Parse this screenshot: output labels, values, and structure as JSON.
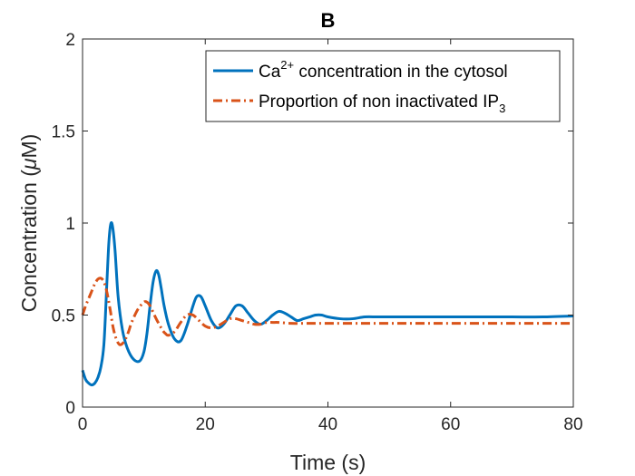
{
  "chart_data": {
    "type": "line",
    "title": "B",
    "xlabel": "Time (s)",
    "ylabel_main": "Concentration (",
    "ylabel_mu": "μ",
    "ylabel_unit": "M)",
    "xlim": [
      0,
      80
    ],
    "ylim": [
      0,
      2
    ],
    "xticks": [
      0,
      20,
      40,
      60,
      80
    ],
    "yticks": [
      0,
      0.5,
      1,
      1.5,
      2
    ],
    "xtick_labels": [
      "0",
      "20",
      "40",
      "60",
      "80"
    ],
    "ytick_labels": [
      "0",
      "0.5",
      "1",
      "1.5",
      "2"
    ],
    "grid": false,
    "legend_position": "top-right",
    "legend": {
      "ca_prefix": "Ca",
      "ca_sup": "2+",
      "ca_suffix": " concentration in the cytosol",
      "ip3_prefix": "Proportion of non inactivated IP",
      "ip3_sub": "3"
    },
    "series": [
      {
        "key": "ca",
        "color": "#0072BD",
        "style": "solid",
        "x": [
          0,
          0.5,
          1,
          1.5,
          2,
          2.5,
          3,
          3.5,
          4,
          4.3,
          4.6,
          4.9,
          5.3,
          5.8,
          6.5,
          7.3,
          8.3,
          9.3,
          10,
          10.5,
          11,
          11.5,
          12,
          12.4,
          12.8,
          13.3,
          14,
          15,
          16,
          17,
          18,
          18.6,
          19.3,
          20,
          21,
          22,
          23,
          24,
          25,
          26,
          27,
          28,
          29,
          30,
          31,
          32,
          33,
          34,
          35,
          36,
          37,
          38,
          39,
          40,
          42,
          44,
          46,
          48,
          50,
          55,
          60,
          65,
          70,
          75,
          80
        ],
        "y": [
          0.2,
          0.15,
          0.13,
          0.12,
          0.13,
          0.16,
          0.22,
          0.35,
          0.7,
          0.9,
          0.995,
          0.98,
          0.85,
          0.6,
          0.42,
          0.32,
          0.26,
          0.25,
          0.3,
          0.4,
          0.55,
          0.68,
          0.74,
          0.72,
          0.65,
          0.55,
          0.45,
          0.37,
          0.36,
          0.44,
          0.55,
          0.6,
          0.6,
          0.55,
          0.47,
          0.43,
          0.45,
          0.5,
          0.55,
          0.55,
          0.51,
          0.47,
          0.45,
          0.47,
          0.5,
          0.52,
          0.51,
          0.49,
          0.47,
          0.48,
          0.49,
          0.5,
          0.5,
          0.49,
          0.48,
          0.48,
          0.49,
          0.49,
          0.49,
          0.49,
          0.49,
          0.49,
          0.49,
          0.49,
          0.495
        ]
      },
      {
        "key": "ip3",
        "color": "#D95319",
        "style": "dashdot",
        "x": [
          0,
          0.5,
          1,
          1.5,
          2,
          2.5,
          3,
          3.5,
          4,
          4.5,
          5,
          5.5,
          6,
          6.5,
          7,
          7.5,
          8,
          9,
          10,
          10.5,
          11,
          12,
          13,
          13.5,
          14,
          15,
          16,
          17,
          18,
          19,
          20,
          21,
          22,
          23,
          24,
          25,
          26,
          27,
          28,
          29,
          30,
          31,
          32,
          34,
          36,
          38,
          40,
          45,
          50,
          55,
          60,
          70,
          80
        ],
        "y": [
          0.5,
          0.55,
          0.59,
          0.63,
          0.67,
          0.695,
          0.7,
          0.68,
          0.62,
          0.53,
          0.43,
          0.37,
          0.34,
          0.345,
          0.37,
          0.41,
          0.46,
          0.53,
          0.57,
          0.57,
          0.55,
          0.48,
          0.42,
          0.4,
          0.39,
          0.41,
          0.46,
          0.5,
          0.5,
          0.47,
          0.44,
          0.43,
          0.44,
          0.46,
          0.48,
          0.48,
          0.47,
          0.46,
          0.45,
          0.45,
          0.46,
          0.46,
          0.46,
          0.455,
          0.455,
          0.455,
          0.455,
          0.455,
          0.455,
          0.455,
          0.455,
          0.455,
          0.455
        ]
      }
    ]
  }
}
